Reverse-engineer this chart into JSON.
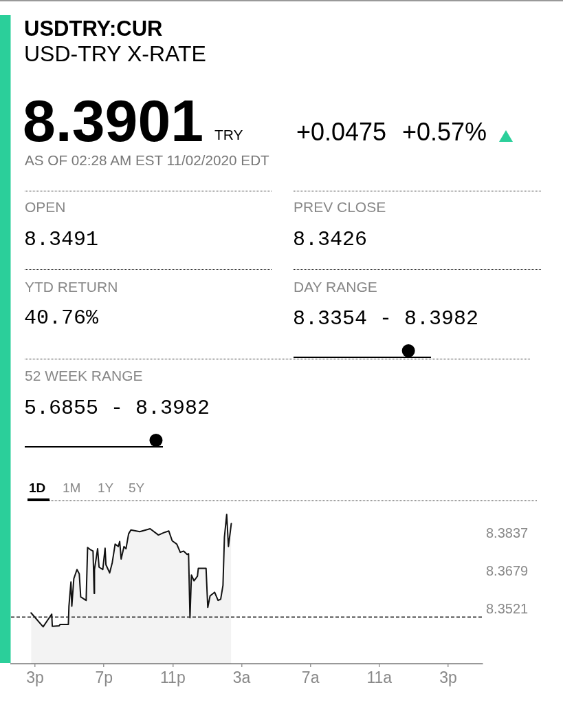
{
  "chart_data": {
    "type": "area",
    "title": "USDTRY:CUR",
    "subtitle": "USD-TRY X-RATE",
    "annotations": [
      "8.3901",
      "TRY",
      "+0.0475",
      "+0.57%",
      "AS OF 02:28 AM EST 11/02/2020 EDT",
      "OPEN",
      "8.3491",
      "PREV CLOSE",
      "8.3426",
      "YTD RETURN",
      "40.76%",
      "DAY RANGE",
      "8.3354 - 8.3982",
      "52 WEEK RANGE",
      "5.6855 - 8.3982",
      "1D",
      "1M",
      "1Y",
      "5Y"
    ],
    "x": [
      "2020-11-01T14:46",
      "2020-11-01T15:28",
      "2020-11-01T15:58",
      "2020-11-01T16:00",
      "2020-11-01T16:24",
      "2020-11-01T16:27",
      "2020-11-01T16:56",
      "2020-11-01T16:58",
      "2020-11-01T17:05",
      "2020-11-01T17:08",
      "2020-11-01T17:15",
      "2020-11-01T17:26",
      "2020-11-01T17:34",
      "2020-11-01T17:39",
      "2020-11-01T17:58",
      "2020-11-01T18:03",
      "2020-11-01T18:14",
      "2020-11-01T18:22",
      "2020-11-01T18:26",
      "2020-11-01T18:27",
      "2020-11-01T18:38",
      "2020-11-01T18:43",
      "2020-11-01T18:56",
      "2020-11-01T19:04",
      "2020-11-01T19:07",
      "2020-11-01T19:20",
      "2020-11-01T19:29",
      "2020-11-01T19:39",
      "2020-11-01T19:50",
      "2020-11-01T19:55",
      "2020-11-01T20:00",
      "2020-11-01T20:10",
      "2020-11-01T20:17",
      "2020-11-01T20:26",
      "2020-11-01T20:34",
      "2020-11-01T21:05",
      "2020-11-01T21:41",
      "2020-11-01T22:10",
      "2020-11-01T22:29",
      "2020-11-01T22:46",
      "2020-11-01T22:58",
      "2020-11-01T23:14",
      "2020-11-01T23:26",
      "2020-11-01T23:38",
      "2020-11-01T23:50",
      "2020-11-01T23:55",
      "2020-11-02T00:00",
      "2020-11-02T00:05",
      "2020-11-02T00:14",
      "2020-11-02T00:26",
      "2020-11-02T00:29",
      "2020-11-02T00:56",
      "2020-11-02T01:02",
      "2020-11-02T01:10",
      "2020-11-02T01:26",
      "2020-11-02T01:38",
      "2020-11-02T01:47",
      "2020-11-02T01:55",
      "2020-11-02T02:00",
      "2020-11-02T02:08",
      "2020-11-02T02:14",
      "2020-11-02T02:24"
    ],
    "values": [
      8.3507,
      8.3449,
      8.3502,
      8.3451,
      8.3453,
      8.3459,
      8.3459,
      8.3535,
      8.3636,
      8.3535,
      8.365,
      8.3688,
      8.367,
      8.3574,
      8.3559,
      8.378,
      8.377,
      8.3765,
      8.3588,
      8.3688,
      8.3775,
      8.3698,
      8.3688,
      8.3777,
      8.3708,
      8.3674,
      8.3717,
      8.3794,
      8.3784,
      8.3805,
      8.3732,
      8.3784,
      8.3775,
      8.3837,
      8.3853,
      8.3846,
      8.3858,
      8.3832,
      8.3842,
      8.3849,
      8.3808,
      8.3794,
      8.376,
      8.3765,
      8.3751,
      8.3754,
      8.3487,
      8.3665,
      8.3641,
      8.366,
      8.3693,
      8.3693,
      8.353,
      8.3578,
      8.3593,
      8.3559,
      8.3564,
      8.3622,
      8.3823,
      8.3918,
      8.3784,
      8.388
    ],
    "color": "#111111",
    "marker": "none",
    "line_style": "solid",
    "xlim": [
      "2020-11-01T13:36",
      "2020-11-02T17:00"
    ],
    "xticks": [
      {
        "value": "2020-11-01T15:00",
        "label": "3p"
      },
      {
        "value": "2020-11-01T19:00",
        "label": "7p"
      },
      {
        "value": "2020-11-01T23:00",
        "label": "11p"
      },
      {
        "value": "2020-11-02T03:00",
        "label": "3a"
      },
      {
        "value": "2020-11-02T07:00",
        "label": "7a"
      },
      {
        "value": "2020-11-02T11:00",
        "label": "11a"
      },
      {
        "value": "2020-11-02T15:00",
        "label": "3p"
      }
    ],
    "ylim": [
      8.3295,
      8.3976
    ],
    "yticks": [
      8.3521,
      8.3679,
      8.3837
    ],
    "ref_lines": [
      {
        "axis": "y",
        "value": 8.349,
        "color": "#222222",
        "line_style": "dashed"
      }
    ]
  }
}
